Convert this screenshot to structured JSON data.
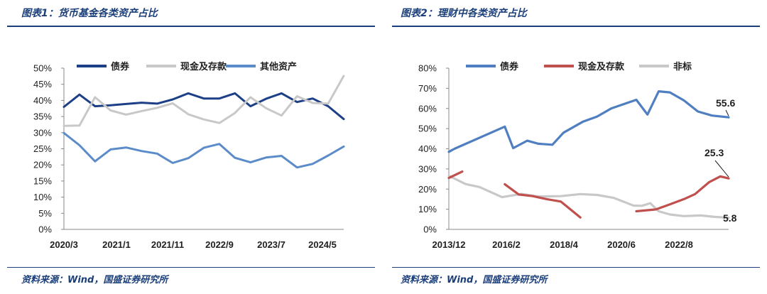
{
  "source_text": "资料来源：Wind，国盛证券研究所",
  "chart_data": [
    {
      "type": "line",
      "title": "图表1：货币基金各类资产占比",
      "y_ticks": [
        "0%",
        "5%",
        "10%",
        "15%",
        "20%",
        "25%",
        "30%",
        "35%",
        "40%",
        "45%",
        "50%"
      ],
      "ylim": [
        0,
        50
      ],
      "x_tick_labels": [
        "2020/3",
        "2021/1",
        "2021/11",
        "2022/9",
        "2023/7",
        "2024/5"
      ],
      "legend": [
        "债券",
        "现金及存款",
        "其他资产"
      ],
      "series": [
        {
          "name": "债券",
          "color": "#1c3f87",
          "values": [
            38,
            41.8,
            38.2,
            38.5,
            38.9,
            39.3,
            39,
            40.3,
            42.2,
            40.6,
            40.6,
            42.2,
            38.2,
            40.5,
            42.2,
            39.5,
            40.6,
            38.2,
            34.2
          ]
        },
        {
          "name": "现金及存款",
          "color": "#c8c8c8",
          "values": [
            32.1,
            32.2,
            41,
            36.9,
            35.6,
            36.7,
            37.7,
            39.1,
            35.7,
            34.1,
            33,
            36.1,
            41,
            37.6,
            35.3,
            41.3,
            39.2,
            39,
            47.6
          ]
        },
        {
          "name": "其他资产",
          "color": "#5b8cc9",
          "values": [
            29.9,
            26.1,
            21.1,
            24.8,
            25.4,
            24.3,
            23.5,
            20.6,
            22.1,
            25.3,
            26.5,
            22.2,
            20.8,
            22.3,
            22.8,
            19.2,
            20.3,
            22.9,
            25.7
          ]
        }
      ]
    },
    {
      "type": "line",
      "title": "图表2：理财中各类资产占比",
      "y_ticks": [
        "0%",
        "10%",
        "20%",
        "30%",
        "40%",
        "50%",
        "60%",
        "70%",
        "80%"
      ],
      "ylim": [
        0,
        80
      ],
      "x_tick_labels": [
        "2013/12",
        "2016/2",
        "2018/4",
        "2020/6",
        "2022/8"
      ],
      "legend": [
        "债券",
        "现金及存款",
        "非标"
      ],
      "data_labels": [
        "55.6",
        "25.3",
        "5.8"
      ],
      "series": [
        {
          "name": "债券",
          "color": "#4f7fc0",
          "points": [
            [
              0,
              38.5
            ],
            [
              0.02,
              40
            ],
            [
              0.2,
              51
            ],
            [
              0.23,
              40.3
            ],
            [
              0.28,
              44
            ],
            [
              0.32,
              42.5
            ],
            [
              0.37,
              42
            ],
            [
              0.41,
              48
            ],
            [
              0.48,
              53.5
            ],
            [
              0.53,
              56
            ],
            [
              0.58,
              60
            ],
            [
              0.67,
              64.3
            ],
            [
              0.71,
              57
            ],
            [
              0.75,
              68.5
            ],
            [
              0.79,
              68
            ],
            [
              0.84,
              64
            ],
            [
              0.89,
              58.5
            ],
            [
              0.94,
              56.5
            ],
            [
              1,
              55.6
            ]
          ]
        },
        {
          "name": "现金及存款",
          "color": "#c0504d",
          "points": [
            [
              0,
              25.5
            ],
            [
              0.048,
              28.7
            ]
          ],
          "points2": [
            [
              0.2,
              22.4
            ],
            [
              0.25,
              17.3
            ],
            [
              0.3,
              16.5
            ],
            [
              0.35,
              15
            ],
            [
              0.4,
              13.8
            ],
            [
              0.47,
              5.9
            ]
          ],
          "points3": [
            [
              0.67,
              9
            ],
            [
              0.74,
              9.9
            ],
            [
              0.79,
              12.4
            ],
            [
              0.84,
              15
            ],
            [
              0.88,
              17.5
            ],
            [
              0.93,
              23.4
            ],
            [
              0.97,
              26.3
            ],
            [
              1,
              25.3
            ]
          ]
        },
        {
          "name": "非标",
          "color": "#c8c8c8",
          "points": [
            [
              0,
              26.6
            ],
            [
              0.06,
              22.5
            ],
            [
              0.11,
              21
            ],
            [
              0.19,
              16
            ],
            [
              0.26,
              17.6
            ],
            [
              0.32,
              16.3
            ],
            [
              0.4,
              16.5
            ],
            [
              0.47,
              17.5
            ],
            [
              0.53,
              17.1
            ],
            [
              0.59,
              15.6
            ],
            [
              0.66,
              11.8
            ],
            [
              0.69,
              11.7
            ],
            [
              0.72,
              13
            ],
            [
              0.75,
              9
            ],
            [
              0.79,
              7.4
            ],
            [
              0.84,
              6.6
            ],
            [
              0.9,
              6.9
            ],
            [
              0.95,
              6.2
            ],
            [
              1,
              5.8
            ]
          ]
        }
      ]
    }
  ]
}
